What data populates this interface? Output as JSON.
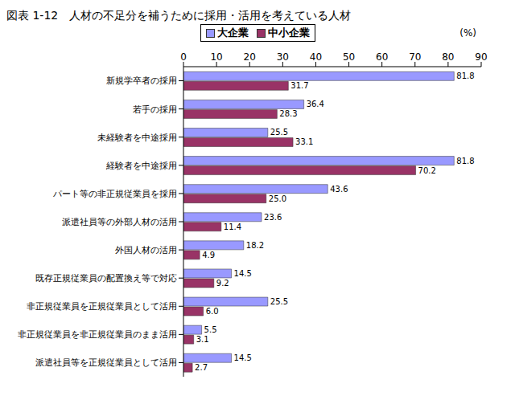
{
  "chart_data": {
    "type": "bar",
    "orientation": "horizontal",
    "title": "図表 1-12　人材の不足分を補うために採用・活用を考えている人材",
    "x_label": "(%)",
    "categories": [
      "新規学卒者の採用",
      "若手の採用",
      "未経験者を中途採用",
      "経験者を中途採用",
      "パート等の非正規従業員を採用",
      "派遣社員等の外部人材の活用",
      "外国人材の活用",
      "既存正規従業員の配置換え等で対応",
      "非正規従業員を正規従業員として活用",
      "非正規従業員を非正規従業員のまま活用",
      "派遣社員等を正規従業員として活用"
    ],
    "series": [
      {
        "name": "大企業",
        "color": "#9999ff",
        "values": [
          81.8,
          36.4,
          25.5,
          81.8,
          43.6,
          23.6,
          18.2,
          14.5,
          25.5,
          5.5,
          14.5
        ],
        "value_labels": [
          "81.8",
          "36.4",
          "25.5",
          "81.8",
          "43.6",
          "23.6",
          "18.2",
          "14.5",
          "25.5",
          "5.5",
          "14.5"
        ]
      },
      {
        "name": "中小企業",
        "color": "#993366",
        "values": [
          31.7,
          28.3,
          33.1,
          70.2,
          25.0,
          11.4,
          4.9,
          9.2,
          6.0,
          3.1,
          2.7
        ],
        "value_labels": [
          "31.7",
          "28.3",
          "33.1",
          "70.2",
          "25.0",
          "11.4",
          "4.9",
          "9.2",
          "6.0",
          "3.1",
          "2.7"
        ]
      }
    ],
    "xlim": [
      0,
      90
    ],
    "xticks": [
      0,
      10,
      20,
      30,
      40,
      50,
      60,
      70,
      80,
      90
    ],
    "grid": false,
    "legend": "top",
    "data_labels": true
  }
}
